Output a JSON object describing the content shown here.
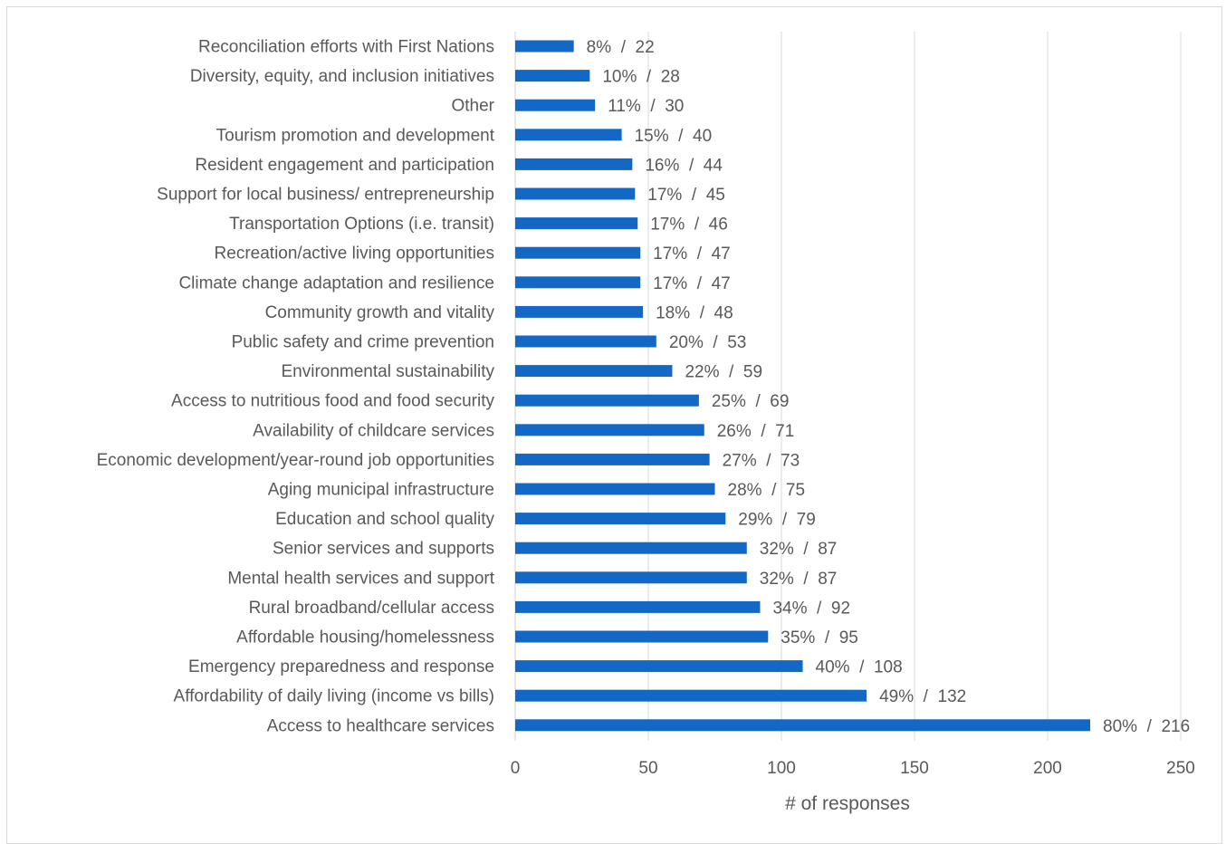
{
  "chart_data": {
    "type": "bar",
    "orientation": "horizontal",
    "xlabel": "# of responses",
    "xlim": [
      0,
      250
    ],
    "x_ticks": [
      0,
      50,
      100,
      150,
      200,
      250
    ],
    "grid": "vertical",
    "bar_color": "#1468c5",
    "categories": [
      "Reconciliation efforts with First Nations",
      "Diversity, equity, and inclusion initiatives",
      "Other",
      "Tourism promotion and development",
      "Resident engagement and participation",
      "Support for local business/ entrepreneurship",
      "Transportation Options (i.e. transit)",
      "Recreation/active living opportunities",
      "Climate change adaptation and resilience",
      "Community growth and vitality",
      "Public safety and crime prevention",
      "Environmental sustainability",
      "Access to nutritious food and food security",
      "Availability of childcare services",
      "Economic development/year-round job opportunities",
      "Aging municipal infrastructure",
      "Education and school quality",
      "Senior services and supports",
      "Mental health services and support",
      "Rural broadband/cellular access",
      "Affordable housing/homelessness",
      "Emergency preparedness and response",
      "Affordability of daily living (income vs bills)",
      "Access to healthcare services"
    ],
    "values": [
      22,
      28,
      30,
      40,
      44,
      45,
      46,
      47,
      47,
      48,
      53,
      59,
      69,
      71,
      73,
      75,
      79,
      87,
      87,
      92,
      95,
      108,
      132,
      216
    ],
    "data_labels": [
      "8%  /  22",
      "10%  /  28",
      "11%  /  30",
      "15%  /  40",
      "16%  /  44",
      "17%  /  45",
      "17%  /  46",
      "17%  /  47",
      "17%  /  47",
      "18%  /  48",
      "20%  /  53",
      "22%  /  59",
      "25%  /  69",
      "26%  /  71",
      "27%  /  73",
      "28%  /  75",
      "29%  /  79",
      "32%  /  87",
      "32%  /  87",
      "34%  /  92",
      "35%  /  95",
      "40%  /  108",
      "49%  /  132",
      "80%  /  216"
    ]
  }
}
